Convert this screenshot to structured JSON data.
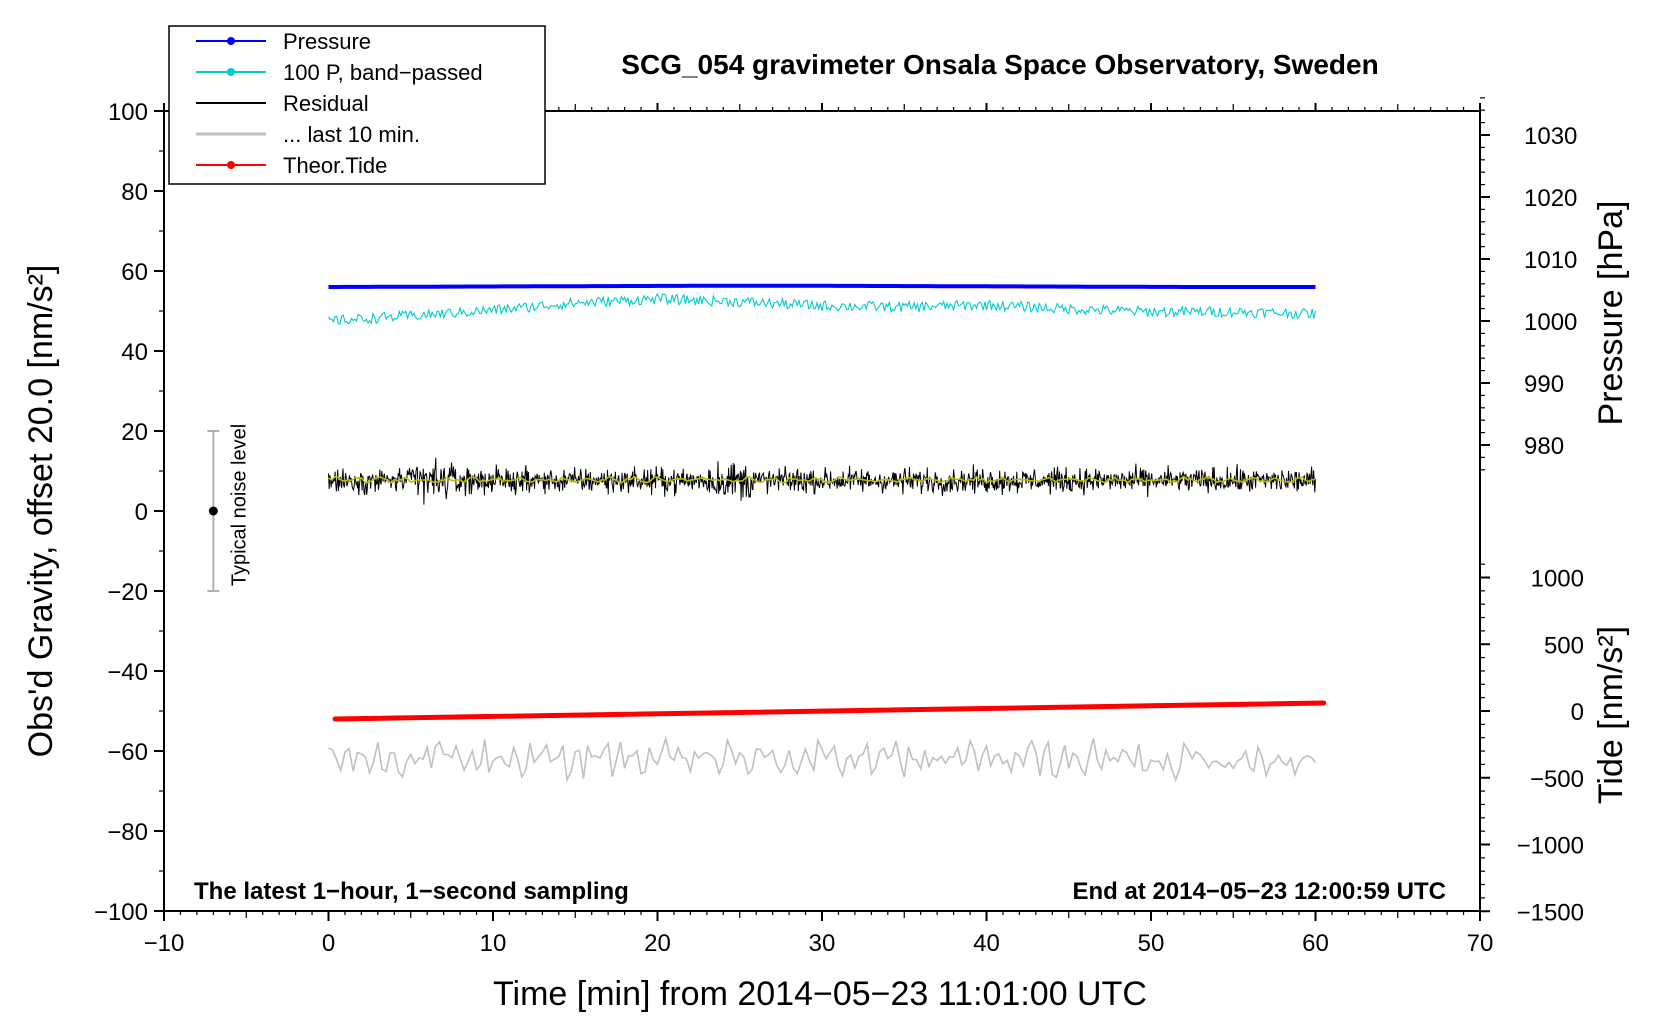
{
  "chart_data": {
    "type": "line",
    "title": "SCG_054 gravimeter Onsala Space Observatory, Sweden",
    "xlabel": "Time [min] from 2014−05−23 11:01:00 UTC",
    "ylabel_left": "Obs'd Gravity, offset 20.0 [nm/s²]",
    "ylabel_right_top": "Pressure [hPa]",
    "ylabel_right_bottom": "Tide [nm/s²]",
    "xlim": [
      -10,
      70
    ],
    "ylim_left": [
      -100,
      100
    ],
    "x_ticks": [
      {
        "value": -10,
        "label": "−10"
      },
      {
        "value": 0,
        "label": "0"
      },
      {
        "value": 10,
        "label": "10"
      },
      {
        "value": 20,
        "label": "20"
      },
      {
        "value": 30,
        "label": "30"
      },
      {
        "value": 40,
        "label": "40"
      },
      {
        "value": 50,
        "label": "50"
      },
      {
        "value": 60,
        "label": "60"
      },
      {
        "value": 70,
        "label": "70"
      }
    ],
    "y_left_ticks": [
      {
        "value": 100,
        "label": "100"
      },
      {
        "value": 80,
        "label": "80"
      },
      {
        "value": 60,
        "label": "60"
      },
      {
        "value": 40,
        "label": "40"
      },
      {
        "value": 20,
        "label": "20"
      },
      {
        "value": 0,
        "label": "0"
      },
      {
        "value": -20,
        "label": "−20"
      },
      {
        "value": -40,
        "label": "−40"
      },
      {
        "value": -60,
        "label": "−60"
      },
      {
        "value": -80,
        "label": "−80"
      },
      {
        "value": -100,
        "label": "−100"
      }
    ],
    "pressure_axis": {
      "ticks": [
        {
          "value": 1030,
          "label": "1030"
        },
        {
          "value": 1020,
          "label": "1020"
        },
        {
          "value": 1010,
          "label": "1010"
        },
        {
          "value": 1000,
          "label": "1000"
        },
        {
          "value": 990,
          "label": "990"
        },
        {
          "value": 980,
          "label": "980"
        }
      ]
    },
    "tide_axis": {
      "ticks": [
        {
          "value": 1000,
          "label": "1000"
        },
        {
          "value": 500,
          "label": "500"
        },
        {
          "value": 0,
          "label": "0"
        },
        {
          "value": -500,
          "label": "−500"
        },
        {
          "value": -1000,
          "label": "−1000"
        },
        {
          "value": -1500,
          "label": "−1500"
        }
      ]
    },
    "legend": {
      "position": "top-left",
      "entries": [
        {
          "label": "Pressure",
          "color": "#0000ff",
          "marker": true
        },
        {
          "label": "100 P, band−passed",
          "color": "#00cccc",
          "marker": true
        },
        {
          "label": "Residual",
          "color": "#000000",
          "marker": false
        },
        {
          "label": "... last 10 min.",
          "color": "#c0c0c0",
          "marker": false
        },
        {
          "label": "Theor.Tide",
          "color": "#ff0000",
          "marker": true
        }
      ]
    },
    "series": [
      {
        "name": "Pressure",
        "color": "#0000ff",
        "x_range": [
          0,
          60
        ],
        "y_values": [
          56.0,
          56.1,
          56.2,
          56.3,
          56.3,
          56.2,
          56.1,
          56.0,
          56.0
        ],
        "note": "on left scale (gravity units)"
      },
      {
        "name": "100 P, band-passed",
        "color": "#00cccc",
        "x_range": [
          0,
          60
        ],
        "y_center": [
          47.5,
          48.8,
          50.2,
          52.0,
          53.0,
          52.3,
          51.3,
          51.0,
          51.5,
          50.5,
          49.8,
          49.8,
          49.3
        ],
        "amplitude": 1.3
      },
      {
        "name": "Residual",
        "color": "#000000",
        "x_range": [
          0,
          60
        ],
        "mean": 7.6,
        "amplitude": 4.5
      },
      {
        "name": "Residual smoothed",
        "color": "#bbbb00",
        "x_range": [
          0,
          60
        ],
        "mean": 7.8,
        "amplitude": 0.8
      },
      {
        "name": "Theor.Tide",
        "color": "#ff0000",
        "x_range": [
          0.4,
          60.5
        ],
        "y_start": -52,
        "y_end": -48
      },
      {
        "name": "... last 10 min.",
        "color": "#c0c0c0",
        "x_range": [
          0,
          60
        ],
        "mean": -62,
        "amplitude": 4.5
      }
    ],
    "noise_level": {
      "label": "Typical noise level",
      "x": -7,
      "y": 0,
      "error": 20
    },
    "annotations": {
      "left": "The latest 1−hour, 1−second sampling",
      "right": "End at 2014−05−23 12:00:59 UTC"
    }
  }
}
